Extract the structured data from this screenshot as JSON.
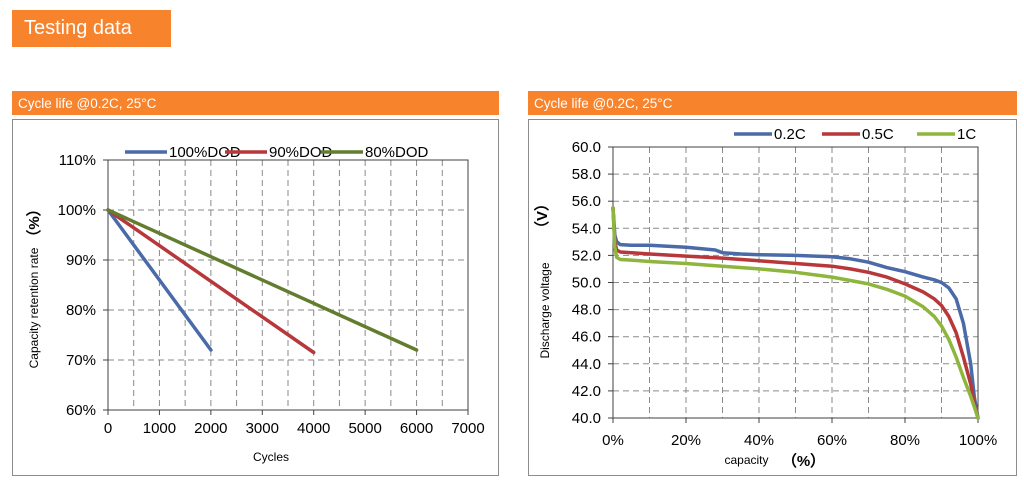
{
  "page": {
    "section_title": "Testing data"
  },
  "chart_data": [
    {
      "type": "line",
      "panel_title": "Cycle life @0.2C, 25°C",
      "xlabel": "Cycles",
      "ylabel": "Capacity retention rate",
      "yunit": "（%）",
      "xlim": [
        0,
        7000
      ],
      "ylim": [
        60,
        110
      ],
      "xticks": [
        0,
        1000,
        2000,
        3000,
        4000,
        5000,
        6000,
        7000
      ],
      "xtick_labels": [
        "0",
        "1000",
        "2000",
        "3000",
        "4000",
        "5000",
        "6000",
        "7000"
      ],
      "yticks": [
        60,
        70,
        80,
        90,
        100,
        110
      ],
      "ytick_labels": [
        "60%",
        "70%",
        "80%",
        "90%",
        "100%",
        "110%"
      ],
      "grid": true,
      "legend_position": "top",
      "series": [
        {
          "name": "100%DOD",
          "color": "#4a6aa8",
          "x": [
            0,
            2000
          ],
          "y": [
            100,
            72
          ]
        },
        {
          "name": "90%DOD",
          "color": "#b7373a",
          "x": [
            0,
            4000
          ],
          "y": [
            100,
            71.5
          ]
        },
        {
          "name": "80%DOD",
          "color": "#637d2e",
          "x": [
            0,
            6000
          ],
          "y": [
            100,
            72
          ]
        }
      ]
    },
    {
      "type": "line",
      "panel_title": "Cycle life @0.2C, 25°C",
      "xlabel": "capacity",
      "xunit": "（%）",
      "ylabel": "Discharge voltage",
      "yunit": "（V）",
      "xlim": [
        0,
        100
      ],
      "ylim": [
        40,
        60
      ],
      "xticks": [
        0,
        20,
        40,
        60,
        80,
        100
      ],
      "xtick_labels": [
        "0%",
        "20%",
        "40%",
        "60%",
        "80%",
        "100%"
      ],
      "yticks": [
        40,
        42,
        44,
        46,
        48,
        50,
        52,
        54,
        56,
        58,
        60
      ],
      "ytick_labels": [
        "40.0",
        "42.0",
        "44.0",
        "46.0",
        "48.0",
        "50.0",
        "52.0",
        "54.0",
        "56.0",
        "58.0",
        "60.0"
      ],
      "grid": true,
      "legend_position": "top-right",
      "series": [
        {
          "name": "0.2C",
          "color": "#4a6aa8",
          "x": [
            0,
            0.5,
            1,
            2,
            5,
            10,
            20,
            28,
            30,
            35,
            40,
            50,
            60,
            65,
            70,
            75,
            80,
            85,
            88,
            90,
            92,
            94,
            96,
            98,
            99,
            100
          ],
          "y": [
            55.5,
            53.5,
            53.0,
            52.8,
            52.75,
            52.75,
            52.6,
            52.4,
            52.2,
            52.1,
            52.05,
            52.0,
            51.9,
            51.75,
            51.5,
            51.1,
            50.8,
            50.4,
            50.2,
            50.0,
            49.6,
            48.8,
            47.0,
            44.0,
            41.5,
            40.0
          ]
        },
        {
          "name": "0.5C",
          "color": "#b7373a",
          "x": [
            0,
            0.5,
            1,
            2,
            5,
            10,
            20,
            30,
            40,
            50,
            60,
            65,
            70,
            75,
            80,
            85,
            88,
            90,
            92,
            94,
            96,
            98,
            99,
            100
          ],
          "y": [
            55.5,
            53.0,
            52.4,
            52.25,
            52.2,
            52.1,
            51.95,
            51.8,
            51.6,
            51.4,
            51.2,
            51.0,
            50.75,
            50.4,
            49.9,
            49.3,
            48.8,
            48.3,
            47.5,
            46.3,
            44.5,
            42.5,
            41.0,
            40.0
          ]
        },
        {
          "name": "1C",
          "color": "#8eb53c",
          "x": [
            0,
            0.5,
            1,
            2,
            5,
            10,
            20,
            30,
            40,
            50,
            60,
            65,
            70,
            75,
            80,
            85,
            88,
            90,
            92,
            94,
            96,
            98,
            99,
            100
          ],
          "y": [
            55.5,
            52.6,
            51.85,
            51.7,
            51.65,
            51.55,
            51.4,
            51.2,
            51.0,
            50.75,
            50.4,
            50.15,
            49.9,
            49.5,
            49.0,
            48.2,
            47.5,
            46.8,
            45.8,
            44.5,
            43.0,
            41.6,
            40.8,
            40.0
          ]
        }
      ]
    }
  ]
}
